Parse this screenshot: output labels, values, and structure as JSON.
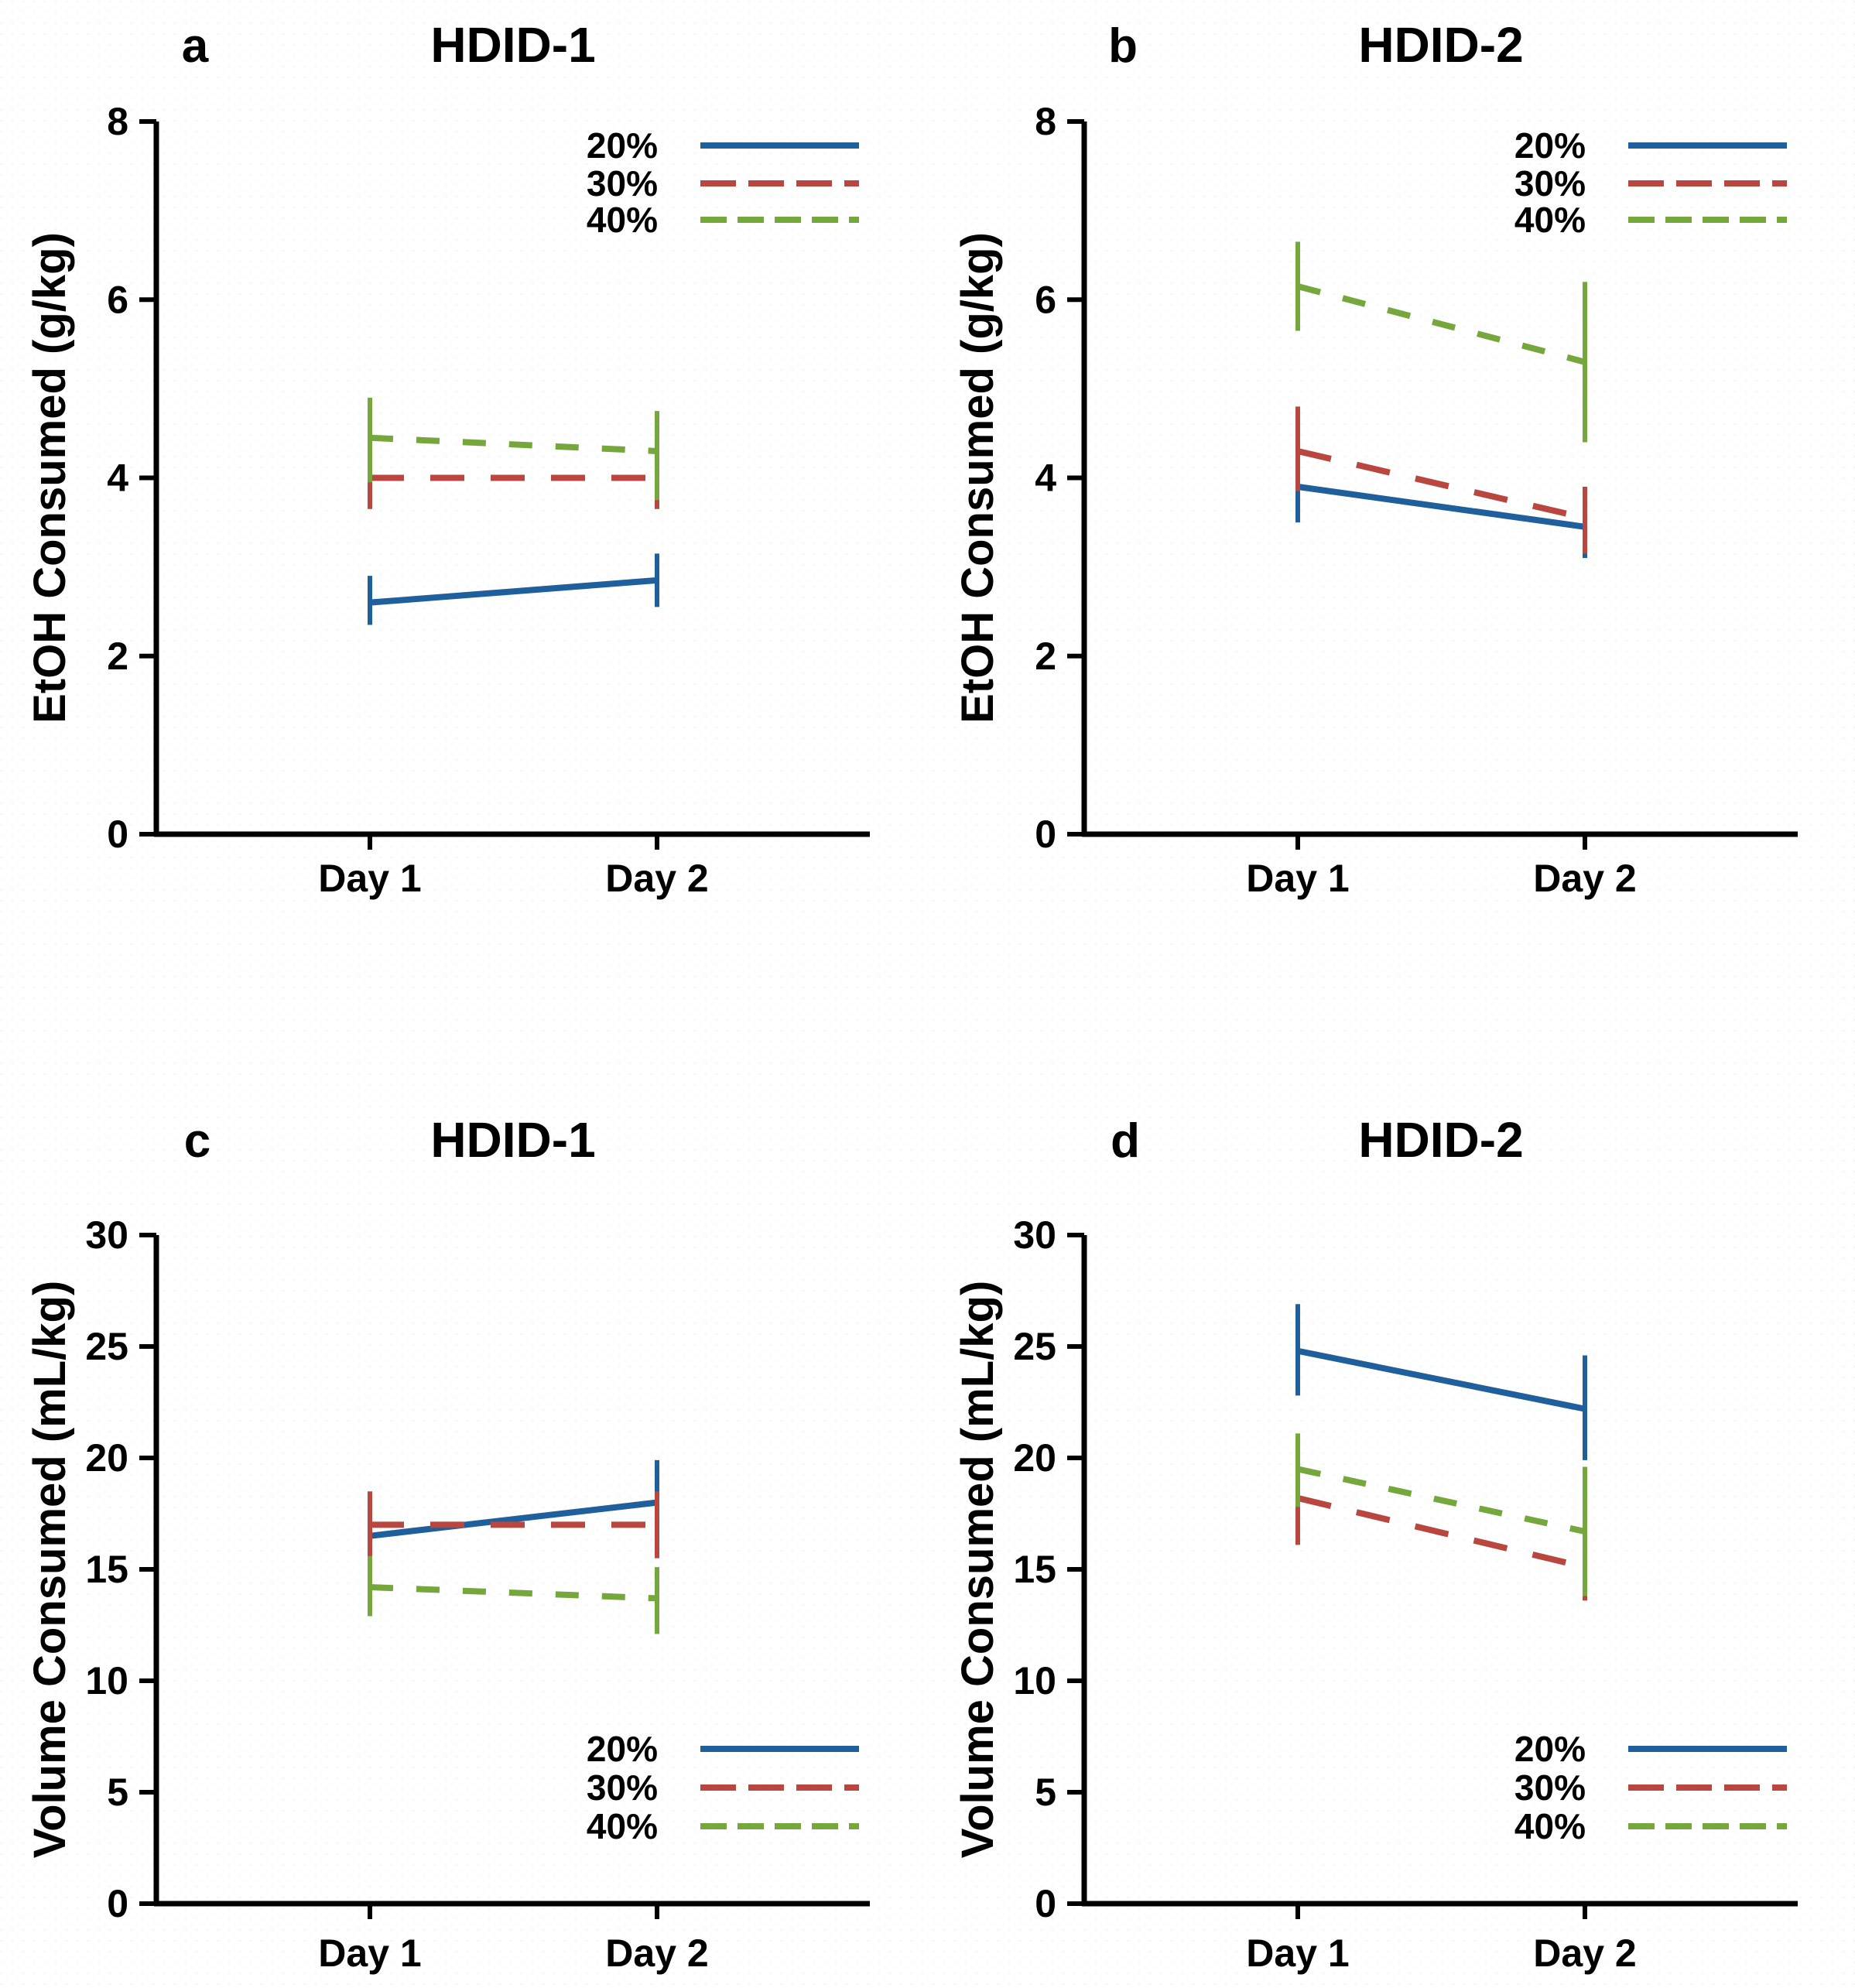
{
  "figure": {
    "colors": {
      "axis": "#000000",
      "blue": "#1e5f9c",
      "red": "#b9473f",
      "green": "#76a73d"
    },
    "x_tick_labels": [
      "Day 1",
      "Day 2"
    ]
  },
  "chart_data": [
    {
      "panel_label": "a",
      "type": "line",
      "title": "HDID-1",
      "ylabel": "EtOH Consumed (g/kg)",
      "xlabel": "",
      "categories": [
        "Day 1",
        "Day 2"
      ],
      "ylim": [
        0,
        8
      ],
      "yticks": [
        0,
        2,
        4,
        6,
        8
      ],
      "grid": false,
      "legend_position": "top-right",
      "series": [
        {
          "name": "20%",
          "style": "solid",
          "color_key": "blue",
          "values": [
            2.6,
            2.85
          ],
          "err_low": [
            2.35,
            2.55
          ],
          "err_high": [
            2.9,
            3.15
          ]
        },
        {
          "name": "30%",
          "style": "long-dash",
          "color_key": "red",
          "values": [
            4.0,
            4.0
          ],
          "err_low": [
            3.65,
            3.65
          ],
          "err_high": [
            4.35,
            4.3
          ]
        },
        {
          "name": "40%",
          "style": "dash",
          "color_key": "green",
          "values": [
            4.45,
            4.3
          ],
          "err_low": [
            3.95,
            3.75
          ],
          "err_high": [
            4.9,
            4.75
          ]
        }
      ]
    },
    {
      "panel_label": "b",
      "type": "line",
      "title": "HDID-2",
      "ylabel": "EtOH Consumed (g/kg)",
      "xlabel": "",
      "categories": [
        "Day 1",
        "Day 2"
      ],
      "ylim": [
        0,
        8
      ],
      "yticks": [
        0,
        2,
        4,
        6,
        8
      ],
      "grid": false,
      "legend_position": "top-right",
      "series": [
        {
          "name": "20%",
          "style": "solid",
          "color_key": "blue",
          "values": [
            3.9,
            3.45
          ],
          "err_low": [
            3.5,
            3.1
          ],
          "err_high": [
            4.25,
            3.8
          ]
        },
        {
          "name": "30%",
          "style": "long-dash",
          "color_key": "red",
          "values": [
            4.3,
            3.55
          ],
          "err_low": [
            3.85,
            3.15
          ],
          "err_high": [
            4.8,
            3.9
          ]
        },
        {
          "name": "40%",
          "style": "dash",
          "color_key": "green",
          "values": [
            6.15,
            5.3
          ],
          "err_low": [
            5.65,
            4.4
          ],
          "err_high": [
            6.65,
            6.2
          ]
        }
      ]
    },
    {
      "panel_label": "c",
      "type": "line",
      "title": "HDID-1",
      "ylabel": "Volume Consumed (mL/kg)",
      "xlabel": "",
      "categories": [
        "Day 1",
        "Day 2"
      ],
      "ylim": [
        0,
        30
      ],
      "yticks": [
        0,
        5,
        10,
        15,
        20,
        25,
        30
      ],
      "grid": false,
      "legend_position": "bottom-right",
      "series": [
        {
          "name": "20%",
          "style": "solid",
          "color_key": "blue",
          "values": [
            16.5,
            18.0
          ],
          "err_low": [
            15.6,
            16.1
          ],
          "err_high": [
            17.4,
            19.9
          ]
        },
        {
          "name": "30%",
          "style": "long-dash",
          "color_key": "red",
          "values": [
            17.0,
            17.0
          ],
          "err_low": [
            15.5,
            15.5
          ],
          "err_high": [
            18.5,
            18.5
          ]
        },
        {
          "name": "40%",
          "style": "dash",
          "color_key": "green",
          "values": [
            14.2,
            13.7
          ],
          "err_low": [
            12.9,
            12.1
          ],
          "err_high": [
            15.6,
            15.1
          ]
        }
      ]
    },
    {
      "panel_label": "d",
      "type": "line",
      "title": "HDID-2",
      "ylabel": "Volume Consumed (mL/kg)",
      "xlabel": "",
      "categories": [
        "Day 1",
        "Day 2"
      ],
      "ylim": [
        0,
        30
      ],
      "yticks": [
        0,
        5,
        10,
        15,
        20,
        25,
        30
      ],
      "grid": false,
      "legend_position": "bottom-right",
      "series": [
        {
          "name": "20%",
          "style": "solid",
          "color_key": "blue",
          "values": [
            24.8,
            22.2
          ],
          "err_low": [
            22.8,
            19.9
          ],
          "err_high": [
            26.9,
            24.6
          ]
        },
        {
          "name": "30%",
          "style": "long-dash",
          "color_key": "red",
          "values": [
            18.2,
            15.1
          ],
          "err_low": [
            16.1,
            13.6
          ],
          "err_high": [
            20.2,
            16.6
          ]
        },
        {
          "name": "40%",
          "style": "dash",
          "color_key": "green",
          "values": [
            19.5,
            16.7
          ],
          "err_low": [
            17.8,
            13.8
          ],
          "err_high": [
            21.1,
            19.6
          ]
        }
      ]
    }
  ]
}
